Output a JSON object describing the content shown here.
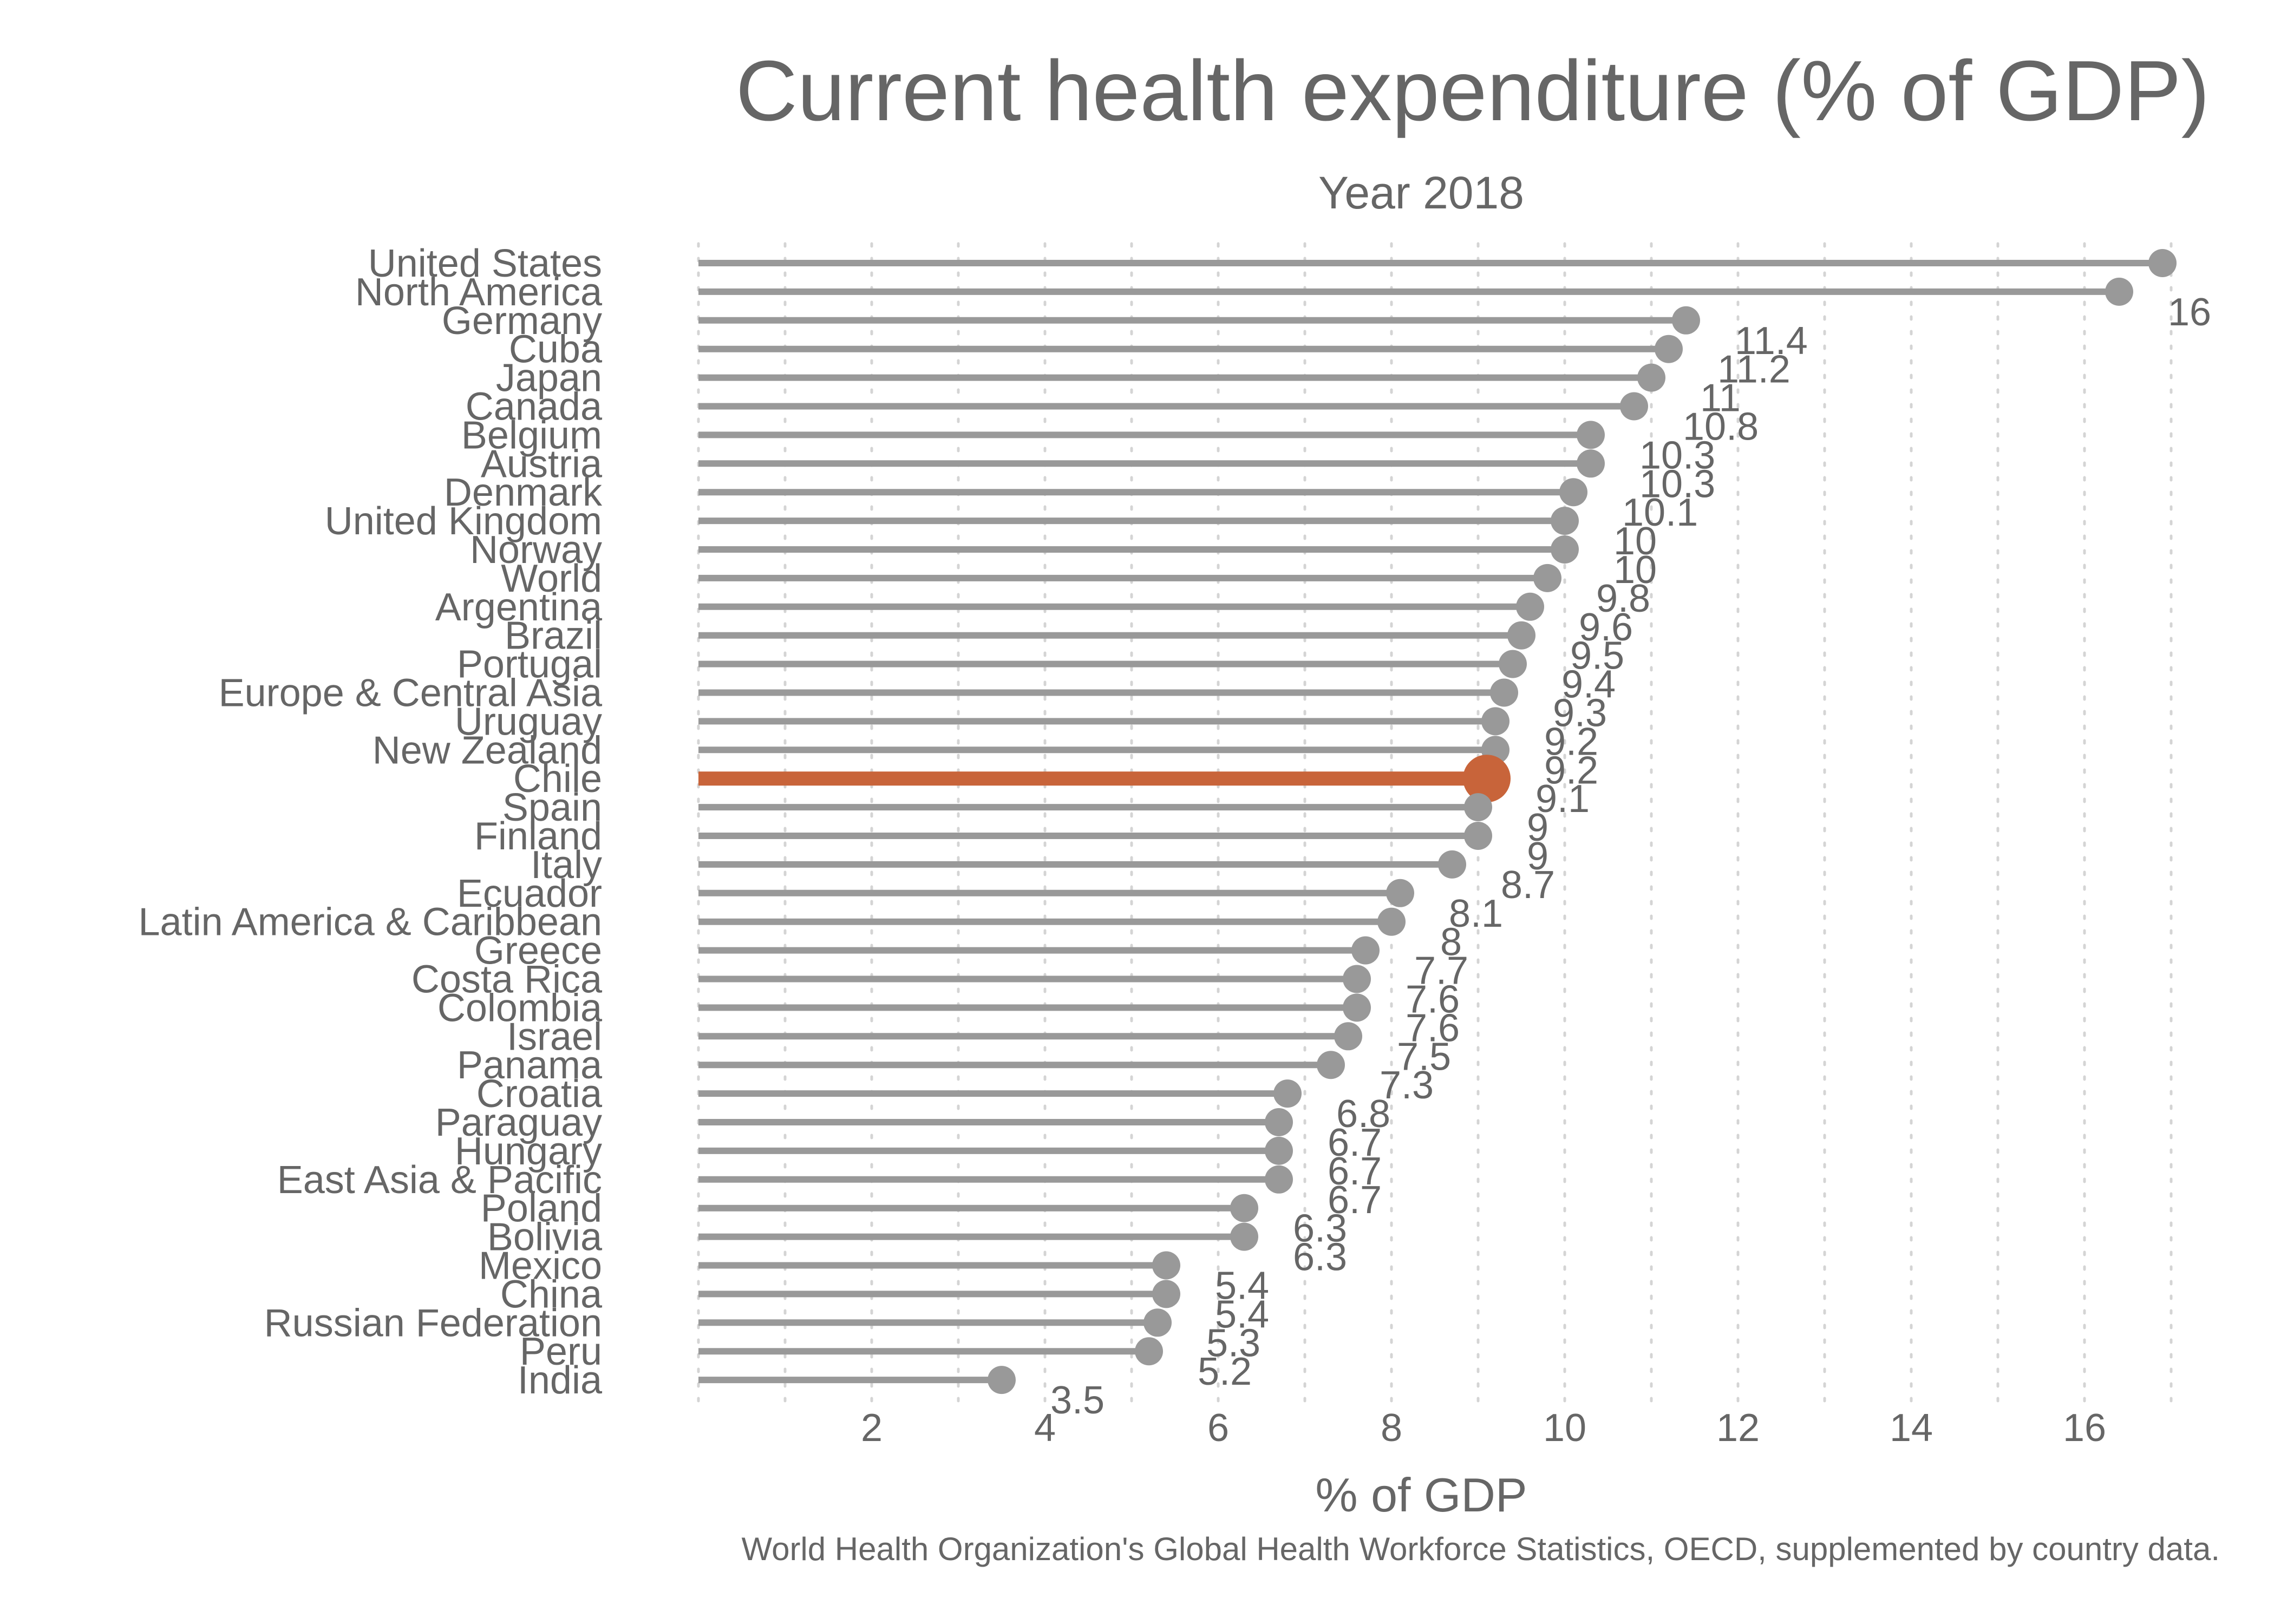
{
  "chart_data": {
    "type": "lollipop",
    "title": "Current health expenditure (% of GDP)",
    "subtitle": "Year 2018",
    "xlabel": "% of GDP",
    "caption": "World Health Organization's Global Health Workforce Statistics, OECD, supplemented by country data.",
    "xlim": [
      0,
      17
    ],
    "x_ticks": [
      2,
      4,
      6,
      8,
      10,
      12,
      14,
      16
    ],
    "grid": "vertical dotted",
    "highlight": "Chile",
    "colors": {
      "default": "#999999",
      "highlight": "#C8643A",
      "text": "#666666",
      "grid": "#D4D4D4"
    },
    "categories": [
      "United States",
      "North America",
      "Germany",
      "Cuba",
      "Japan",
      "Canada",
      "Belgium",
      "Austria",
      "Denmark",
      "United Kingdom",
      "Norway",
      "World",
      "Argentina",
      "Brazil",
      "Portugal",
      "Europe & Central Asia",
      "Uruguay",
      "New Zealand",
      "Chile",
      "Spain",
      "Finland",
      "Italy",
      "Ecuador",
      "Latin America & Caribbean",
      "Greece",
      "Costa Rica",
      "Colombia",
      "Israel",
      "Panama",
      "Croatia",
      "Paraguay",
      "Hungary",
      "East Asia & Pacific",
      "Poland",
      "Bolivia",
      "Mexico",
      "China",
      "Russian Federation",
      "Peru",
      "India"
    ],
    "values": [
      16.9,
      16.4,
      11.4,
      11.2,
      11,
      10.8,
      10.3,
      10.3,
      10.1,
      10,
      10,
      9.8,
      9.6,
      9.5,
      9.4,
      9.3,
      9.2,
      9.2,
      9.1,
      9,
      9,
      8.7,
      8.1,
      8,
      7.7,
      7.6,
      7.6,
      7.5,
      7.3,
      6.8,
      6.7,
      6.7,
      6.7,
      6.3,
      6.3,
      5.4,
      5.4,
      5.3,
      5.2,
      3.5
    ],
    "value_labels": [
      "",
      "16",
      "11.4",
      "11.2",
      "11",
      "10.8",
      "10.3",
      "10.3",
      "10.1",
      "10",
      "10",
      "9.8",
      "9.6",
      "9.5",
      "9.4",
      "9.3",
      "9.2",
      "9.2",
      "9.1",
      "9",
      "9",
      "8.7",
      "8.1",
      "8",
      "7.7",
      "7.6",
      "7.6",
      "7.5",
      "7.3",
      "6.8",
      "6.7",
      "6.7",
      "6.7",
      "6.3",
      "6.3",
      "5.4",
      "5.4",
      "5.3",
      "5.2",
      "3.5"
    ]
  }
}
